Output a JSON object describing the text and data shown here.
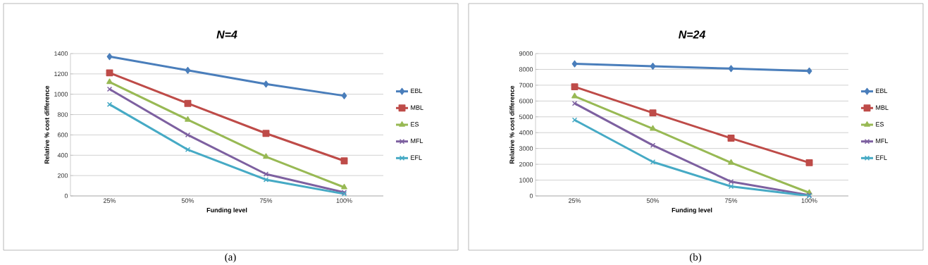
{
  "chart_data": [
    {
      "type": "line",
      "title": "N=4",
      "xlabel": "Funding level",
      "ylabel": "Relative % cost difference",
      "categories": [
        "25%",
        "50%",
        "75%",
        "100%"
      ],
      "series": [
        {
          "name": "EBL",
          "color": "#4a7ebb",
          "marker": "diamond",
          "values": [
            1370,
            1235,
            1100,
            985
          ]
        },
        {
          "name": "MBL",
          "color": "#be4b48",
          "marker": "square",
          "values": [
            1210,
            910,
            615,
            345
          ]
        },
        {
          "name": "ES",
          "color": "#98b954",
          "marker": "triangle",
          "values": [
            1120,
            750,
            385,
            85
          ]
        },
        {
          "name": "MFL",
          "color": "#7d60a0",
          "marker": "cross",
          "values": [
            1050,
            600,
            215,
            35
          ]
        },
        {
          "name": "EFL",
          "color": "#46aac5",
          "marker": "cross",
          "values": [
            900,
            455,
            160,
            20
          ]
        }
      ],
      "ylim": [
        0,
        1400
      ],
      "yticks": [
        0,
        200,
        400,
        600,
        800,
        1000,
        1200,
        1400
      ],
      "grid": "y",
      "legend": "right",
      "annotations": [
        "(a)"
      ]
    },
    {
      "type": "line",
      "title": "N=24",
      "xlabel": "Funding level",
      "ylabel": "Relative % cost difference",
      "categories": [
        "25%",
        "50%",
        "75%",
        "100%"
      ],
      "series": [
        {
          "name": "EBL",
          "color": "#4a7ebb",
          "marker": "diamond",
          "values": [
            8350,
            8200,
            8050,
            7900
          ]
        },
        {
          "name": "MBL",
          "color": "#be4b48",
          "marker": "square",
          "values": [
            6900,
            5250,
            3650,
            2100
          ]
        },
        {
          "name": "ES",
          "color": "#98b954",
          "marker": "triangle",
          "values": [
            6300,
            4250,
            2100,
            200
          ]
        },
        {
          "name": "MFL",
          "color": "#7d60a0",
          "marker": "cross",
          "values": [
            5850,
            3200,
            900,
            50
          ]
        },
        {
          "name": "EFL",
          "color": "#46aac5",
          "marker": "cross",
          "values": [
            4800,
            2150,
            600,
            0
          ]
        }
      ],
      "ylim": [
        0,
        9000
      ],
      "yticks": [
        0,
        1000,
        2000,
        3000,
        4000,
        5000,
        6000,
        7000,
        8000,
        9000
      ],
      "grid": "y",
      "legend": "right",
      "annotations": [
        "(b)"
      ]
    }
  ]
}
